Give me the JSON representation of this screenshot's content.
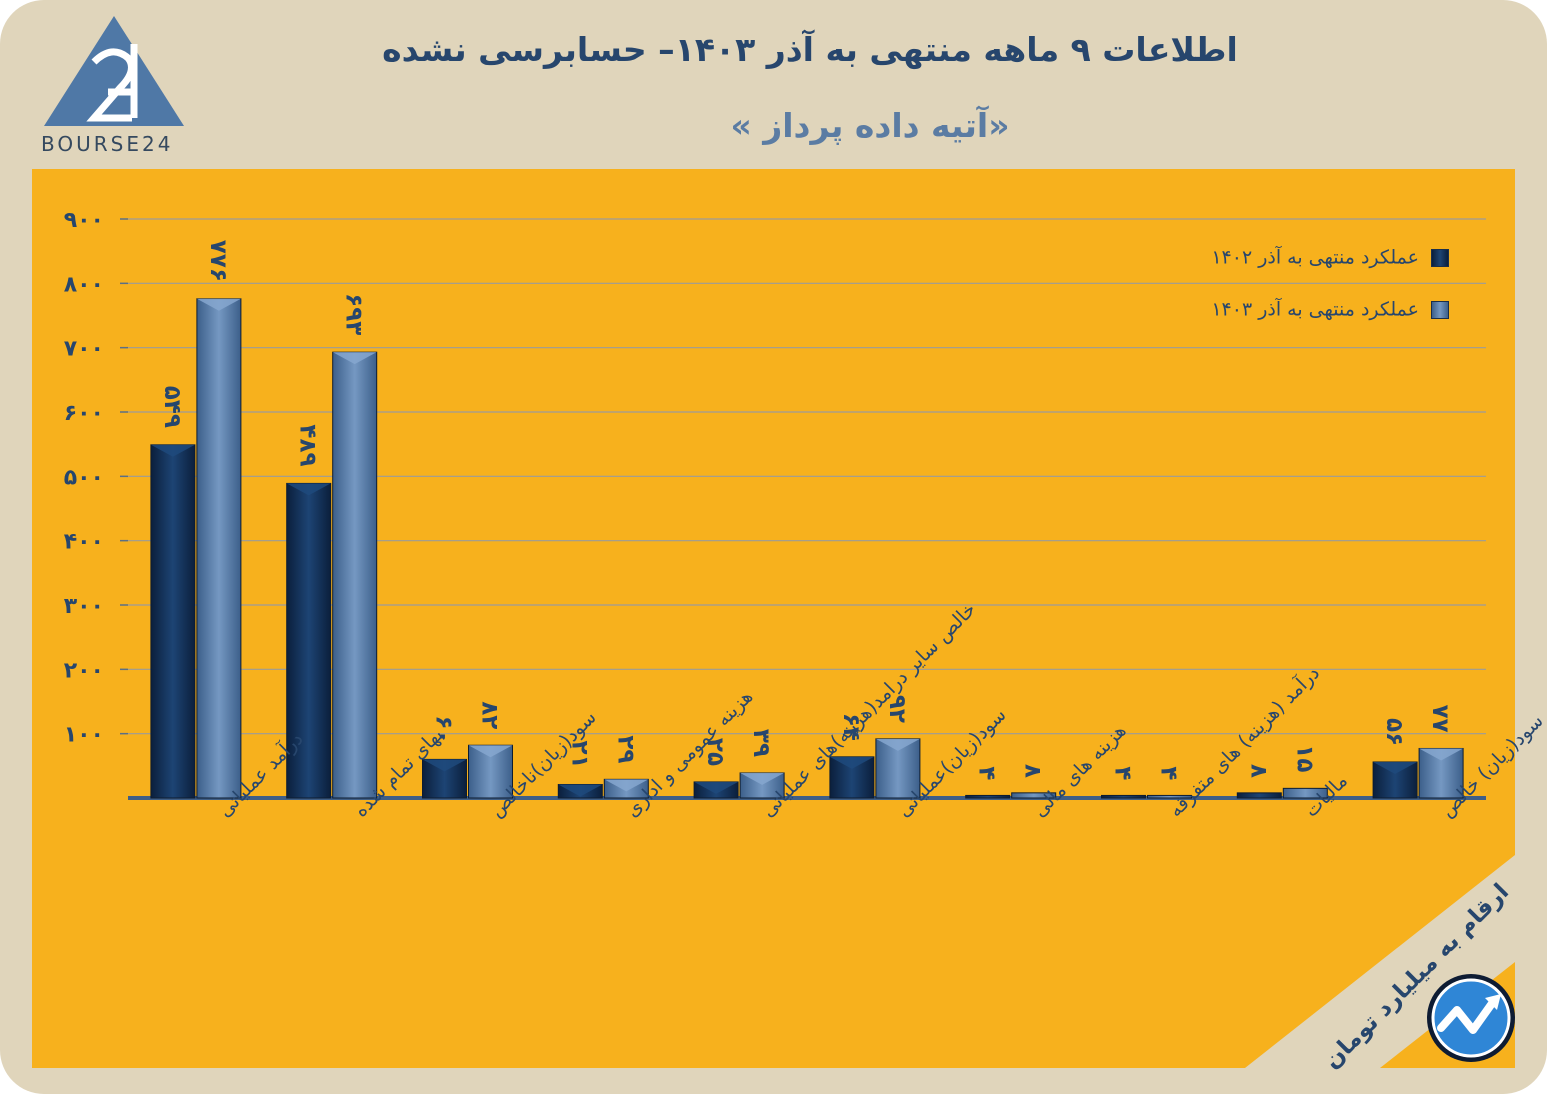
{
  "header": {
    "title": "اطلاعات ۹ ماهه منتهی به آذر ۱۴۰۳– حسابرسی نشده",
    "subtitle": "«آتیه داده پرداز »"
  },
  "logo": {
    "text": "BOURSE24"
  },
  "unit_note": "ارقام به میلیارد تومان",
  "colors": {
    "series_1402": "#14335c",
    "series_1403": "#5a7ea9",
    "panel": "#f7b11d",
    "background": "#e0d5bb",
    "text": "#27466d"
  },
  "chart_data": {
    "type": "bar",
    "title": "",
    "xlabel": "",
    "ylabel": "",
    "ylim": [
      0,
      900
    ],
    "yticks": [
      "۱۰۰",
      "۲۰۰",
      "۳۰۰",
      "۴۰۰",
      "۵۰۰",
      "۶۰۰",
      "۷۰۰",
      "۸۰۰",
      "۹۰۰"
    ],
    "ytick_values": [
      100,
      200,
      300,
      400,
      500,
      600,
      700,
      800,
      900
    ],
    "grid": true,
    "legend_position": "top-right",
    "categories": [
      "درآمد عملیاتی",
      "بهای تمام شده",
      "سود(زیان)ناخالص",
      "هزینه عمومی و اداری",
      "خالص سایر درامد(هزینه)های عملیاتی",
      "سود(زیان)عملیاتی",
      "هزینه های مالی",
      "درآمد (هزینه) های متفرقه",
      "مالیات",
      "سود(زیان) خالص"
    ],
    "series": [
      {
        "name": "عملکرد منتهی به آذر ۱۴۰۲",
        "values": [
          549,
          489,
          60,
          21,
          25,
          64,
          4,
          4,
          8,
          56
        ],
        "labels": [
          "۵۴۹",
          "۴۸۹",
          "۶۰",
          "۲۱",
          "۲۵",
          "۶۴",
          "۴",
          "۴",
          "۸",
          "۵۶"
        ]
      },
      {
        "name": "عملکرد منتهی به آذر ۱۴۰۳",
        "values": [
          776,
          693,
          82,
          29,
          39,
          92,
          8,
          4,
          15,
          77
        ],
        "labels": [
          "۷۷۶",
          "۶۹۳",
          "۸۲",
          "۲۹",
          "۳۹",
          "۹۲",
          "۸",
          "۴",
          "۱۵",
          "۷۷"
        ]
      }
    ]
  }
}
